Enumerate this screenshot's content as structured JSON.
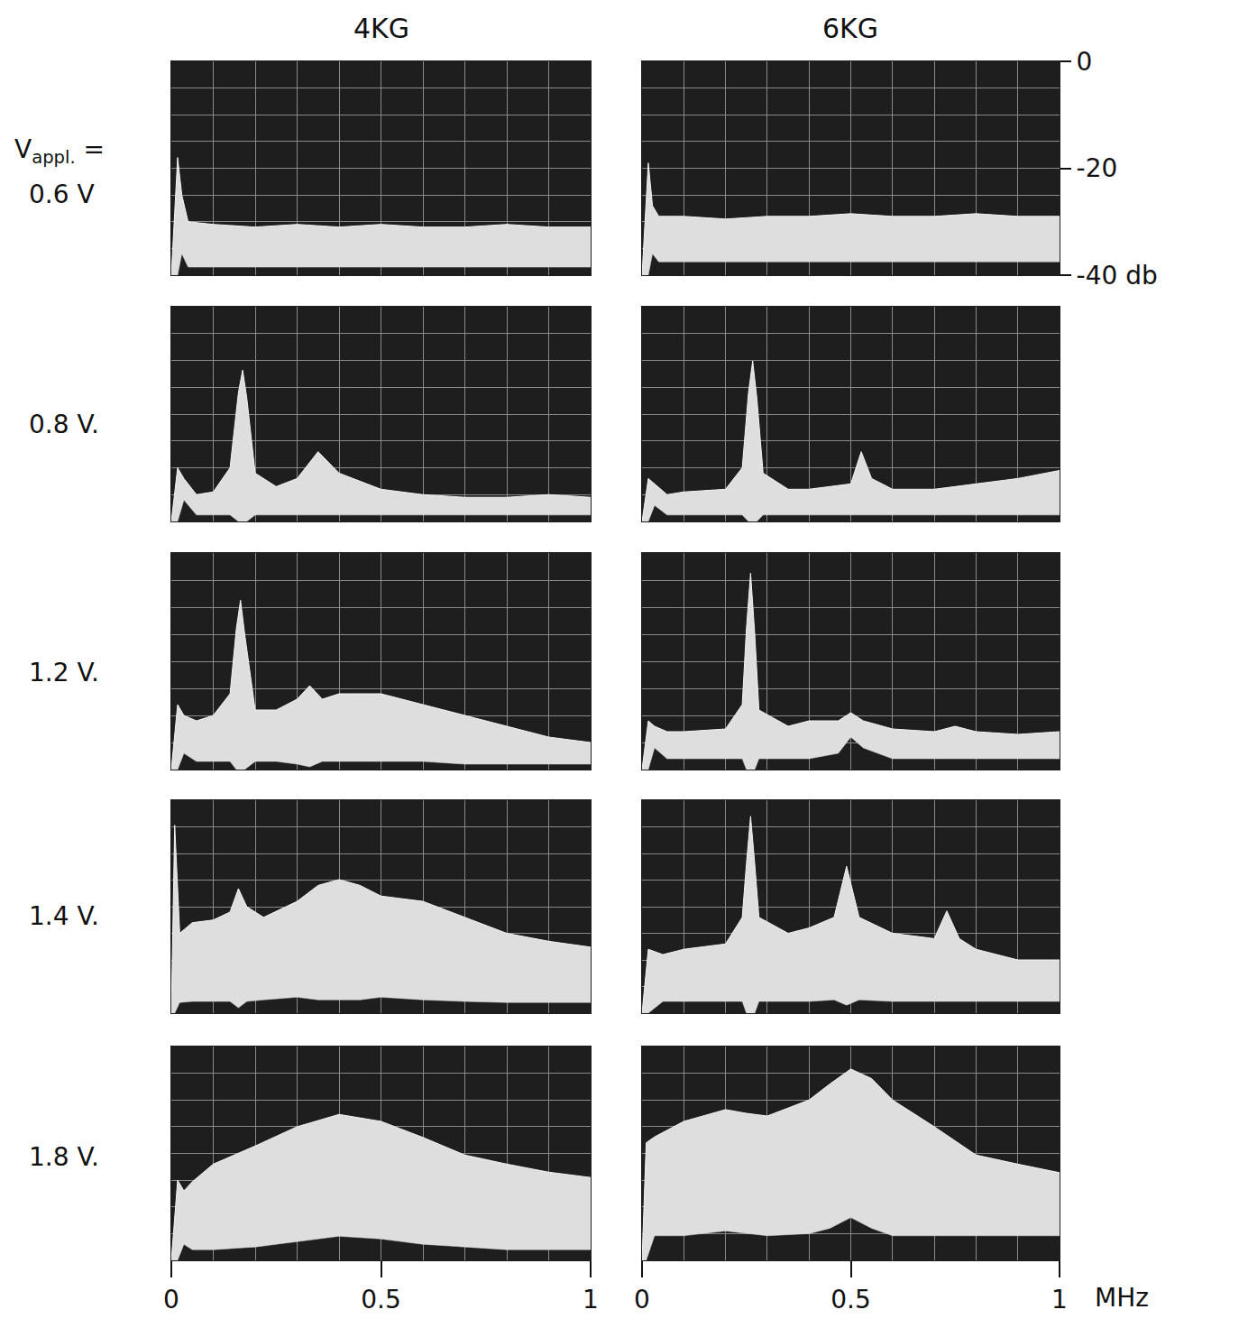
{
  "chart_data": {
    "type": "area",
    "grid": true,
    "columns": [
      "4KG",
      "6KG"
    ],
    "rows": [
      "0.6 V",
      "0.8 V.",
      "1.2 V.",
      "1.4 V.",
      "1.8 V."
    ],
    "row_label_prefix": "V",
    "row_label_subscript": "appl.",
    "row_label_suffix": "=",
    "x_unit_label": "MHz",
    "xlim": [
      0,
      1
    ],
    "xticks": [
      0,
      0.5,
      1
    ],
    "ylim": [
      -40,
      0
    ],
    "yticks": [
      0,
      -20,
      {
        "value": -40,
        "label": "-40 db"
      }
    ],
    "panels": [
      [
        {
          "x": [
            0,
            0.015,
            0.025,
            0.04,
            0.1,
            0.2,
            0.3,
            0.4,
            0.5,
            0.6,
            0.7,
            0.8,
            0.9,
            1.0
          ],
          "upper": [
            -40,
            -18,
            -25,
            -30,
            -30.5,
            -31,
            -30.5,
            -31,
            -30.5,
            -31,
            -31,
            -30.5,
            -31,
            -31
          ],
          "lower": [
            -40,
            -40,
            -36,
            -38.5,
            -38.5,
            -38.5,
            -38.5,
            -38.5,
            -38.5,
            -38.5,
            -38.5,
            -38.5,
            -38.5,
            -38.5
          ]
        },
        {
          "x": [
            0,
            0.015,
            0.025,
            0.04,
            0.1,
            0.2,
            0.3,
            0.4,
            0.5,
            0.6,
            0.7,
            0.8,
            0.9,
            1.0
          ],
          "upper": [
            -40,
            -19,
            -27,
            -29,
            -29,
            -29.5,
            -29,
            -29,
            -28.5,
            -29,
            -29,
            -28.5,
            -29,
            -29
          ],
          "lower": [
            -40,
            -40,
            -36,
            -37.5,
            -37.5,
            -37.5,
            -37.5,
            -37.5,
            -37.5,
            -37.5,
            -37.5,
            -37.5,
            -37.5,
            -37.5
          ]
        }
      ],
      [
        {
          "x": [
            0,
            0.015,
            0.03,
            0.06,
            0.1,
            0.14,
            0.16,
            0.17,
            0.18,
            0.2,
            0.25,
            0.3,
            0.35,
            0.4,
            0.5,
            0.6,
            0.7,
            0.8,
            0.9,
            1.0
          ],
          "upper": [
            -40,
            -30,
            -32,
            -35,
            -34.5,
            -30,
            -16,
            -11.8,
            -17,
            -31,
            -33.5,
            -32,
            -27,
            -31,
            -34,
            -35,
            -35.5,
            -35.5,
            -35,
            -35.5
          ],
          "lower": [
            -40,
            -40,
            -36,
            -38.8,
            -38.8,
            -38.8,
            -40,
            -40,
            -40,
            -38.8,
            -38.8,
            -38.8,
            -38.8,
            -38.8,
            -38.8,
            -38.8,
            -38.8,
            -38.8,
            -38.8,
            -38.8
          ]
        },
        {
          "x": [
            0,
            0.015,
            0.03,
            0.06,
            0.1,
            0.2,
            0.24,
            0.255,
            0.265,
            0.275,
            0.29,
            0.35,
            0.4,
            0.5,
            0.525,
            0.55,
            0.6,
            0.7,
            0.8,
            0.9,
            1.0
          ],
          "upper": [
            -40,
            -32,
            -33,
            -35,
            -34.5,
            -34,
            -30,
            -16,
            -10.1,
            -17,
            -31,
            -34,
            -34,
            -33,
            -27,
            -32,
            -34,
            -34,
            -33,
            -32,
            -30.5
          ],
          "lower": [
            -40,
            -40,
            -37,
            -38.8,
            -38.8,
            -38.8,
            -38.8,
            -40,
            -40,
            -40,
            -38.8,
            -38.8,
            -38.8,
            -38.8,
            -38.8,
            -38.8,
            -38.8,
            -38.8,
            -38.8,
            -38.8,
            -38.8
          ]
        }
      ],
      [
        {
          "x": [
            0,
            0.015,
            0.03,
            0.06,
            0.1,
            0.14,
            0.155,
            0.165,
            0.175,
            0.2,
            0.25,
            0.3,
            0.33,
            0.36,
            0.4,
            0.5,
            0.6,
            0.7,
            0.8,
            0.9,
            1.0
          ],
          "upper": [
            -40,
            -28,
            -30,
            -31,
            -30,
            -26,
            -14,
            -8.7,
            -15,
            -29,
            -29,
            -27,
            -24.5,
            -27,
            -26,
            -26,
            -28,
            -30,
            -32,
            -34,
            -35
          ],
          "lower": [
            -40,
            -40,
            -37,
            -38.5,
            -38.5,
            -38.5,
            -40,
            -40,
            -40,
            -38.5,
            -38.5,
            -39,
            -39.5,
            -38.5,
            -38.5,
            -38.5,
            -38.5,
            -39,
            -39,
            -39,
            -39
          ]
        },
        {
          "x": [
            0,
            0.015,
            0.03,
            0.06,
            0.1,
            0.2,
            0.24,
            0.25,
            0.26,
            0.27,
            0.28,
            0.35,
            0.4,
            0.47,
            0.5,
            0.53,
            0.6,
            0.7,
            0.75,
            0.8,
            0.9,
            1.0
          ],
          "upper": [
            -40,
            -31,
            -32,
            -33,
            -33,
            -32.5,
            -28,
            -14,
            -3.7,
            -15,
            -29,
            -32,
            -31,
            -31,
            -29.5,
            -31,
            -32.5,
            -33,
            -32,
            -33,
            -33.5,
            -33
          ],
          "lower": [
            -40,
            -40,
            -36,
            -38,
            -38,
            -38,
            -38,
            -40,
            -40,
            -40,
            -38,
            -38,
            -38,
            -37,
            -34,
            -36,
            -38,
            -38,
            -38,
            -38,
            -38,
            -38
          ]
        }
      ],
      [
        {
          "x": [
            0,
            0.008,
            0.02,
            0.05,
            0.1,
            0.14,
            0.16,
            0.18,
            0.22,
            0.3,
            0.35,
            0.4,
            0.45,
            0.5,
            0.6,
            0.7,
            0.8,
            0.9,
            1.0
          ],
          "upper": [
            -40,
            -4.7,
            -25,
            -23,
            -22.5,
            -21,
            -16.6,
            -20,
            -22,
            -19,
            -16,
            -14.9,
            -16,
            -18,
            -19,
            -22,
            -25,
            -26.5,
            -27.6
          ],
          "lower": [
            -40,
            -40,
            -38,
            -37.8,
            -37.8,
            -37.8,
            -39,
            -37.8,
            -37.5,
            -37,
            -37.5,
            -37.5,
            -37.5,
            -37,
            -37.5,
            -37.8,
            -38,
            -38,
            -38
          ]
        },
        {
          "x": [
            0,
            0.015,
            0.05,
            0.1,
            0.2,
            0.24,
            0.25,
            0.26,
            0.27,
            0.28,
            0.35,
            0.4,
            0.46,
            0.49,
            0.52,
            0.6,
            0.7,
            0.73,
            0.76,
            0.8,
            0.9,
            1.0
          ],
          "upper": [
            -40,
            -28,
            -29,
            -28,
            -27,
            -22,
            -12,
            -3,
            -12,
            -22,
            -25,
            -24,
            -22,
            -12.4,
            -22,
            -25,
            -26,
            -20.8,
            -26,
            -28,
            -30,
            -30
          ],
          "lower": [
            -40,
            -40,
            -37.8,
            -37.8,
            -37.8,
            -37.8,
            -40,
            -40,
            -40,
            -37.8,
            -37.8,
            -37.8,
            -37.5,
            -38.5,
            -37.5,
            -37.8,
            -37.8,
            -37.8,
            -37.8,
            -37.8,
            -37.8,
            -37.8
          ]
        }
      ],
      [
        {
          "x": [
            0,
            0.015,
            0.03,
            0.05,
            0.1,
            0.2,
            0.3,
            0.4,
            0.5,
            0.6,
            0.7,
            0.8,
            0.9,
            1.0
          ],
          "upper": [
            -40,
            -25,
            -27,
            -25.3,
            -22,
            -18.6,
            -15,
            -12.7,
            -14,
            -17,
            -20.3,
            -22,
            -23.5,
            -24.5
          ],
          "lower": [
            -40,
            -40,
            -37,
            -38,
            -38,
            -37.5,
            -36.5,
            -35.5,
            -36,
            -37,
            -37.5,
            -38,
            -38,
            -38
          ]
        },
        {
          "x": [
            0,
            0.01,
            0.03,
            0.1,
            0.2,
            0.25,
            0.3,
            0.4,
            0.45,
            0.5,
            0.55,
            0.6,
            0.7,
            0.8,
            0.9,
            1.0
          ],
          "upper": [
            -40,
            -18,
            -16.9,
            -14,
            -11.8,
            -12.5,
            -13,
            -10,
            -7,
            -4.2,
            -6,
            -10,
            -15,
            -20.3,
            -22,
            -23.6
          ],
          "lower": [
            -40,
            -40,
            -35.4,
            -35.4,
            -34.5,
            -35,
            -35.4,
            -35,
            -34,
            -32,
            -34,
            -35.4,
            -35.4,
            -35.4,
            -35.4,
            -35.4
          ]
        }
      ]
    ]
  }
}
